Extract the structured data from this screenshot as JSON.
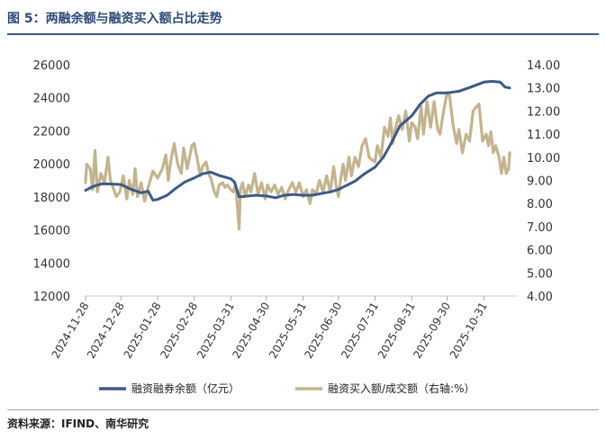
{
  "figure": {
    "title": "图 5：两融余额与融资买入额占比走势",
    "source": "资料来源：IFIND、南华研究"
  },
  "chart_data": {
    "type": "line",
    "left_axis": {
      "ylim": [
        12000,
        26000
      ],
      "ticks": [
        "12000",
        "14000",
        "16000",
        "18000",
        "20000",
        "22000",
        "24000",
        "26000"
      ]
    },
    "right_axis": {
      "ylim": [
        4.0,
        14.0
      ],
      "ticks": [
        "4.00",
        "5.00",
        "6.00",
        "7.00",
        "8.00",
        "9.00",
        "10.00",
        "11.00",
        "12.00",
        "13.00",
        "14.00"
      ]
    },
    "x_ticks": [
      "2024-11-28",
      "2024-12-28",
      "2025-01-28",
      "2025-02-28",
      "2025-03-31",
      "2025-04-30",
      "2025-05-31",
      "2025-06-30",
      "2025-07-31",
      "2025-08-31",
      "2025-09-30",
      "2025-10-31"
    ],
    "legend_position": "bottom",
    "series": [
      {
        "name": "融资融券余额（亿元）",
        "axis": "left",
        "color": "#3d5a86",
        "points": [
          [
            "2024-11-28",
            18400
          ],
          [
            "2024-12-05",
            18650
          ],
          [
            "2024-12-12",
            18800
          ],
          [
            "2024-12-20",
            18780
          ],
          [
            "2024-12-28",
            18750
          ],
          [
            "2025-01-06",
            18450
          ],
          [
            "2025-01-14",
            18250
          ],
          [
            "2025-01-20",
            18350
          ],
          [
            "2025-01-24",
            17800
          ],
          [
            "2025-01-28",
            17850
          ],
          [
            "2025-02-05",
            18100
          ],
          [
            "2025-02-12",
            18500
          ],
          [
            "2025-02-20",
            18900
          ],
          [
            "2025-02-28",
            19150
          ],
          [
            "2025-03-07",
            19400
          ],
          [
            "2025-03-14",
            19500
          ],
          [
            "2025-03-21",
            19300
          ],
          [
            "2025-03-31",
            19100
          ],
          [
            "2025-04-03",
            18900
          ],
          [
            "2025-04-07",
            18000
          ],
          [
            "2025-04-14",
            18050
          ],
          [
            "2025-04-21",
            18100
          ],
          [
            "2025-04-30",
            18050
          ],
          [
            "2025-05-08",
            17950
          ],
          [
            "2025-05-15",
            18100
          ],
          [
            "2025-05-23",
            18150
          ],
          [
            "2025-05-31",
            18100
          ],
          [
            "2025-06-08",
            18100
          ],
          [
            "2025-06-15",
            18200
          ],
          [
            "2025-06-23",
            18300
          ],
          [
            "2025-06-30",
            18450
          ],
          [
            "2025-07-07",
            18700
          ],
          [
            "2025-07-14",
            18950
          ],
          [
            "2025-07-22",
            19400
          ],
          [
            "2025-07-31",
            19800
          ],
          [
            "2025-08-07",
            20400
          ],
          [
            "2025-08-14",
            21300
          ],
          [
            "2025-08-21",
            22300
          ],
          [
            "2025-08-31",
            22900
          ],
          [
            "2025-09-07",
            23600
          ],
          [
            "2025-09-14",
            24100
          ],
          [
            "2025-09-21",
            24300
          ],
          [
            "2025-09-30",
            24300
          ],
          [
            "2025-10-10",
            24400
          ],
          [
            "2025-10-20",
            24650
          ],
          [
            "2025-10-31",
            24950
          ],
          [
            "2025-11-07",
            25000
          ],
          [
            "2025-11-14",
            24950
          ],
          [
            "2025-11-18",
            24650
          ],
          [
            "2025-11-22",
            24600
          ]
        ]
      },
      {
        "name": "融资买入额/成交额（右轴:%）",
        "axis": "right",
        "color": "#c3b48f",
        "points": [
          [
            "2024-11-28",
            8.9
          ],
          [
            "2024-11-29",
            9.7
          ],
          [
            "2024-12-02",
            9.5
          ],
          [
            "2024-12-04",
            8.6
          ],
          [
            "2024-12-06",
            10.3
          ],
          [
            "2024-12-08",
            8.5
          ],
          [
            "2024-12-11",
            9.3
          ],
          [
            "2024-12-14",
            8.9
          ],
          [
            "2024-12-17",
            10.0
          ],
          [
            "2024-12-19",
            9.0
          ],
          [
            "2024-12-22",
            8.6
          ],
          [
            "2024-12-24",
            8.3
          ],
          [
            "2024-12-27",
            8.5
          ],
          [
            "2024-12-30",
            9.2
          ],
          [
            "2025-01-02",
            8.2
          ],
          [
            "2025-01-04",
            9.0
          ],
          [
            "2025-01-07",
            8.4
          ],
          [
            "2025-01-09",
            9.5
          ],
          [
            "2025-01-11",
            8.3
          ],
          [
            "2025-01-14",
            8.9
          ],
          [
            "2025-01-17",
            8.1
          ],
          [
            "2025-01-20",
            8.7
          ],
          [
            "2025-01-24",
            9.4
          ],
          [
            "2025-01-28",
            9.1
          ],
          [
            "2025-02-01",
            9.5
          ],
          [
            "2025-02-04",
            10.1
          ],
          [
            "2025-02-06",
            9.0
          ],
          [
            "2025-02-08",
            9.8
          ],
          [
            "2025-02-11",
            10.6
          ],
          [
            "2025-02-14",
            9.7
          ],
          [
            "2025-02-17",
            9.3
          ],
          [
            "2025-02-19",
            10.4
          ],
          [
            "2025-02-22",
            9.5
          ],
          [
            "2025-02-24",
            10.0
          ],
          [
            "2025-02-26",
            10.5
          ],
          [
            "2025-02-28",
            10.6
          ],
          [
            "2025-03-03",
            9.8
          ],
          [
            "2025-03-05",
            9.2
          ],
          [
            "2025-03-07",
            9.6
          ],
          [
            "2025-03-10",
            9.8
          ],
          [
            "2025-03-12",
            9.3
          ],
          [
            "2025-03-14",
            9.1
          ],
          [
            "2025-03-17",
            8.5
          ],
          [
            "2025-03-19",
            8.3
          ],
          [
            "2025-03-21",
            8.8
          ],
          [
            "2025-03-24",
            8.9
          ],
          [
            "2025-03-26",
            8.7
          ],
          [
            "2025-03-28",
            8.8
          ],
          [
            "2025-03-31",
            8.6
          ],
          [
            "2025-04-02",
            8.5
          ],
          [
            "2025-04-04",
            8.8
          ],
          [
            "2025-04-07",
            6.9
          ],
          [
            "2025-04-08",
            8.6
          ],
          [
            "2025-04-10",
            8.9
          ],
          [
            "2025-04-12",
            8.3
          ],
          [
            "2025-04-15",
            8.8
          ],
          [
            "2025-04-17",
            8.5
          ],
          [
            "2025-04-20",
            9.3
          ],
          [
            "2025-04-23",
            8.4
          ],
          [
            "2025-04-26",
            8.9
          ],
          [
            "2025-04-29",
            8.2
          ],
          [
            "2025-05-01",
            8.8
          ],
          [
            "2025-05-04",
            8.5
          ],
          [
            "2025-05-07",
            8.8
          ],
          [
            "2025-05-10",
            8.4
          ],
          [
            "2025-05-13",
            8.7
          ],
          [
            "2025-05-16",
            8.2
          ],
          [
            "2025-05-19",
            8.6
          ],
          [
            "2025-05-22",
            8.9
          ],
          [
            "2025-05-25",
            8.5
          ],
          [
            "2025-05-28",
            8.9
          ],
          [
            "2025-05-31",
            8.3
          ],
          [
            "2025-06-03",
            8.6
          ],
          [
            "2025-06-06",
            8.0
          ],
          [
            "2025-06-08",
            8.6
          ],
          [
            "2025-06-11",
            8.4
          ],
          [
            "2025-06-14",
            9.0
          ],
          [
            "2025-06-17",
            8.5
          ],
          [
            "2025-06-20",
            9.2
          ],
          [
            "2025-06-23",
            8.5
          ],
          [
            "2025-06-26",
            9.6
          ],
          [
            "2025-06-28",
            8.8
          ],
          [
            "2025-06-30",
            8.3
          ],
          [
            "2025-07-02",
            9.1
          ],
          [
            "2025-07-04",
            9.7
          ],
          [
            "2025-07-06",
            9.0
          ],
          [
            "2025-07-09",
            10.0
          ],
          [
            "2025-07-11",
            9.2
          ],
          [
            "2025-07-14",
            10.0
          ],
          [
            "2025-07-17",
            9.6
          ],
          [
            "2025-07-20",
            10.5
          ],
          [
            "2025-07-23",
            10.8
          ],
          [
            "2025-07-26",
            10.0
          ],
          [
            "2025-07-28",
            9.9
          ],
          [
            "2025-07-31",
            9.8
          ],
          [
            "2025-08-02",
            10.5
          ],
          [
            "2025-08-05",
            10.0
          ],
          [
            "2025-08-08",
            11.3
          ],
          [
            "2025-08-11",
            10.9
          ],
          [
            "2025-08-13",
            11.7
          ],
          [
            "2025-08-15",
            10.6
          ],
          [
            "2025-08-17",
            11.2
          ],
          [
            "2025-08-20",
            11.8
          ],
          [
            "2025-08-23",
            11.2
          ],
          [
            "2025-08-26",
            12.0
          ],
          [
            "2025-08-29",
            10.7
          ],
          [
            "2025-08-31",
            11.5
          ],
          [
            "2025-09-03",
            11.3
          ],
          [
            "2025-09-05",
            10.8
          ],
          [
            "2025-09-08",
            12.2
          ],
          [
            "2025-09-10",
            11.0
          ],
          [
            "2025-09-13",
            12.4
          ],
          [
            "2025-09-16",
            11.3
          ],
          [
            "2025-09-19",
            12.4
          ],
          [
            "2025-09-22",
            11.2
          ],
          [
            "2025-09-24",
            11.0
          ],
          [
            "2025-09-27",
            12.0
          ],
          [
            "2025-09-30",
            12.8
          ],
          [
            "2025-10-02",
            12.7
          ],
          [
            "2025-10-05",
            11.4
          ],
          [
            "2025-10-08",
            10.6
          ],
          [
            "2025-10-10",
            11.2
          ],
          [
            "2025-10-13",
            10.2
          ],
          [
            "2025-10-16",
            11.0
          ],
          [
            "2025-10-19",
            10.7
          ],
          [
            "2025-10-22",
            12.0
          ],
          [
            "2025-10-25",
            12.2
          ],
          [
            "2025-10-27",
            12.3
          ],
          [
            "2025-10-30",
            10.7
          ],
          [
            "2025-11-02",
            11.0
          ],
          [
            "2025-11-04",
            10.5
          ],
          [
            "2025-11-06",
            11.1
          ],
          [
            "2025-11-08",
            10.2
          ],
          [
            "2025-11-10",
            10.5
          ],
          [
            "2025-11-13",
            10.0
          ],
          [
            "2025-11-15",
            9.3
          ],
          [
            "2025-11-17",
            10.0
          ],
          [
            "2025-11-19",
            9.3
          ],
          [
            "2025-11-21",
            9.5
          ],
          [
            "2025-11-22",
            10.2
          ]
        ]
      }
    ]
  }
}
